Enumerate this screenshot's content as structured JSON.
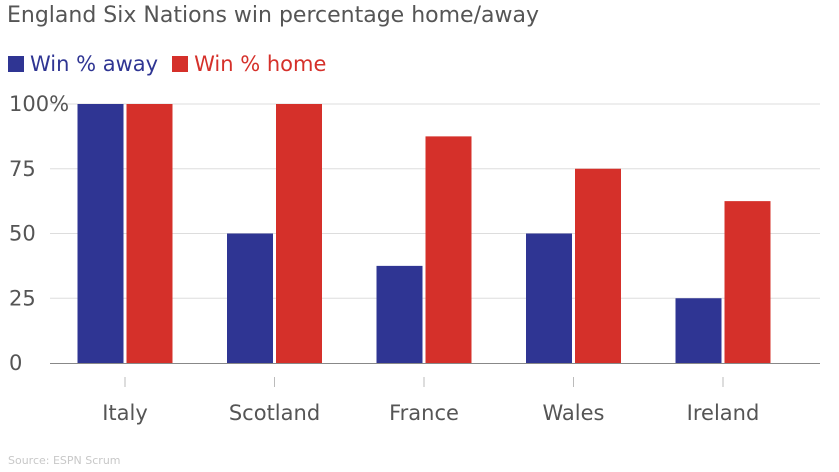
{
  "colors": {
    "away": "#2f3593",
    "home": "#d5302a",
    "grid": "#dddddd",
    "axis": "#888888",
    "tick_text": "#555555"
  },
  "source": "Source: ESPN Scrum",
  "chart_data": {
    "type": "bar",
    "title": "England Six Nations win percentage home/away",
    "xlabel": "",
    "ylabel": "",
    "categories": [
      "Italy",
      "Scotland",
      "France",
      "Wales",
      "Ireland"
    ],
    "series": [
      {
        "name": "Win % away",
        "values": [
          100,
          50,
          37.5,
          50,
          25
        ]
      },
      {
        "name": "Win % home",
        "values": [
          100,
          100,
          87.5,
          75,
          62.5
        ]
      }
    ],
    "ylim": [
      0,
      100
    ],
    "yticks": [
      {
        "value": 0,
        "label": "0"
      },
      {
        "value": 25,
        "label": "25"
      },
      {
        "value": 50,
        "label": "50"
      },
      {
        "value": 75,
        "label": "75"
      },
      {
        "value": 100,
        "label": "100%"
      }
    ],
    "grid": true,
    "legend_position": "top-left"
  }
}
